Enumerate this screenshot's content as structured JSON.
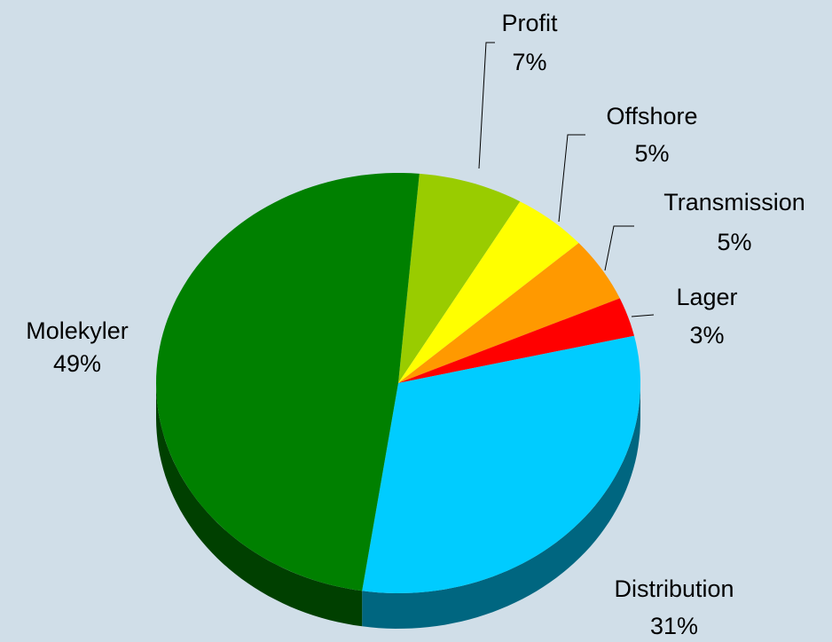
{
  "chart_data": {
    "type": "pie",
    "categories": [
      "Profit",
      "Offshore",
      "Transmission",
      "Lager",
      "Distribution",
      "Molekyler"
    ],
    "values": [
      7,
      5,
      5,
      3,
      31,
      49
    ],
    "value_labels": [
      "7%",
      "5%",
      "5%",
      "3%",
      "31%",
      "49%"
    ],
    "colors": [
      "#99cc00",
      "#ffff00",
      "#ff9900",
      "#ff0000",
      "#00ccff",
      "#008000"
    ]
  }
}
